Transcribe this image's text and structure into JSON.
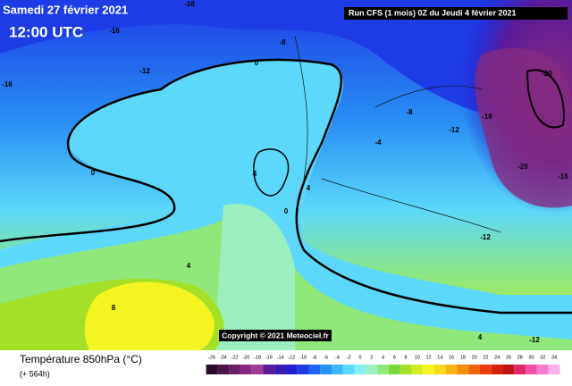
{
  "header": {
    "title": "Samedi 27 février 2021",
    "time": "12:00 UTC",
    "run": "Run CFS (1 mois) 0Z du Jeudi 4 février 2021"
  },
  "map": {
    "copyright": "Copyright © 2021 Meteociel.fr",
    "contour_labels": [
      -16,
      -16,
      -8,
      0,
      -12,
      -16,
      -20,
      -8,
      -16,
      -12,
      -4,
      0,
      4,
      -20,
      -16,
      4,
      0,
      -12,
      4,
      8,
      4,
      -12
    ]
  },
  "footer": {
    "parameter": "Température 850hPa (°C)",
    "lead": "(+ 564h)"
  },
  "legend": {
    "scale": [
      -26,
      -24,
      -22,
      -20,
      -18,
      -16,
      -14,
      -12,
      -10,
      -8,
      -6,
      -4,
      -2,
      0,
      2,
      4,
      6,
      8,
      10,
      12,
      14,
      16,
      18,
      20,
      22,
      24,
      26,
      28,
      30,
      32,
      34
    ],
    "colors": [
      "#2a0a2a",
      "#4a1448",
      "#6a1e66",
      "#862a80",
      "#a03c98",
      "#5a1a9a",
      "#3a1ab4",
      "#2020d0",
      "#1e3ce6",
      "#1e64f0",
      "#2890f4",
      "#3cb8f8",
      "#5cd8fa",
      "#80f0f0",
      "#9cf0c0",
      "#90e87a",
      "#7ad83c",
      "#a4e028",
      "#d4ec20",
      "#f4f420",
      "#f8d818",
      "#f8b414",
      "#f48c10",
      "#f0640c",
      "#e83c0c",
      "#d8200c",
      "#c01414",
      "#e0286c",
      "#f050a8",
      "#f47cd0",
      "#f8b0ec"
    ]
  }
}
